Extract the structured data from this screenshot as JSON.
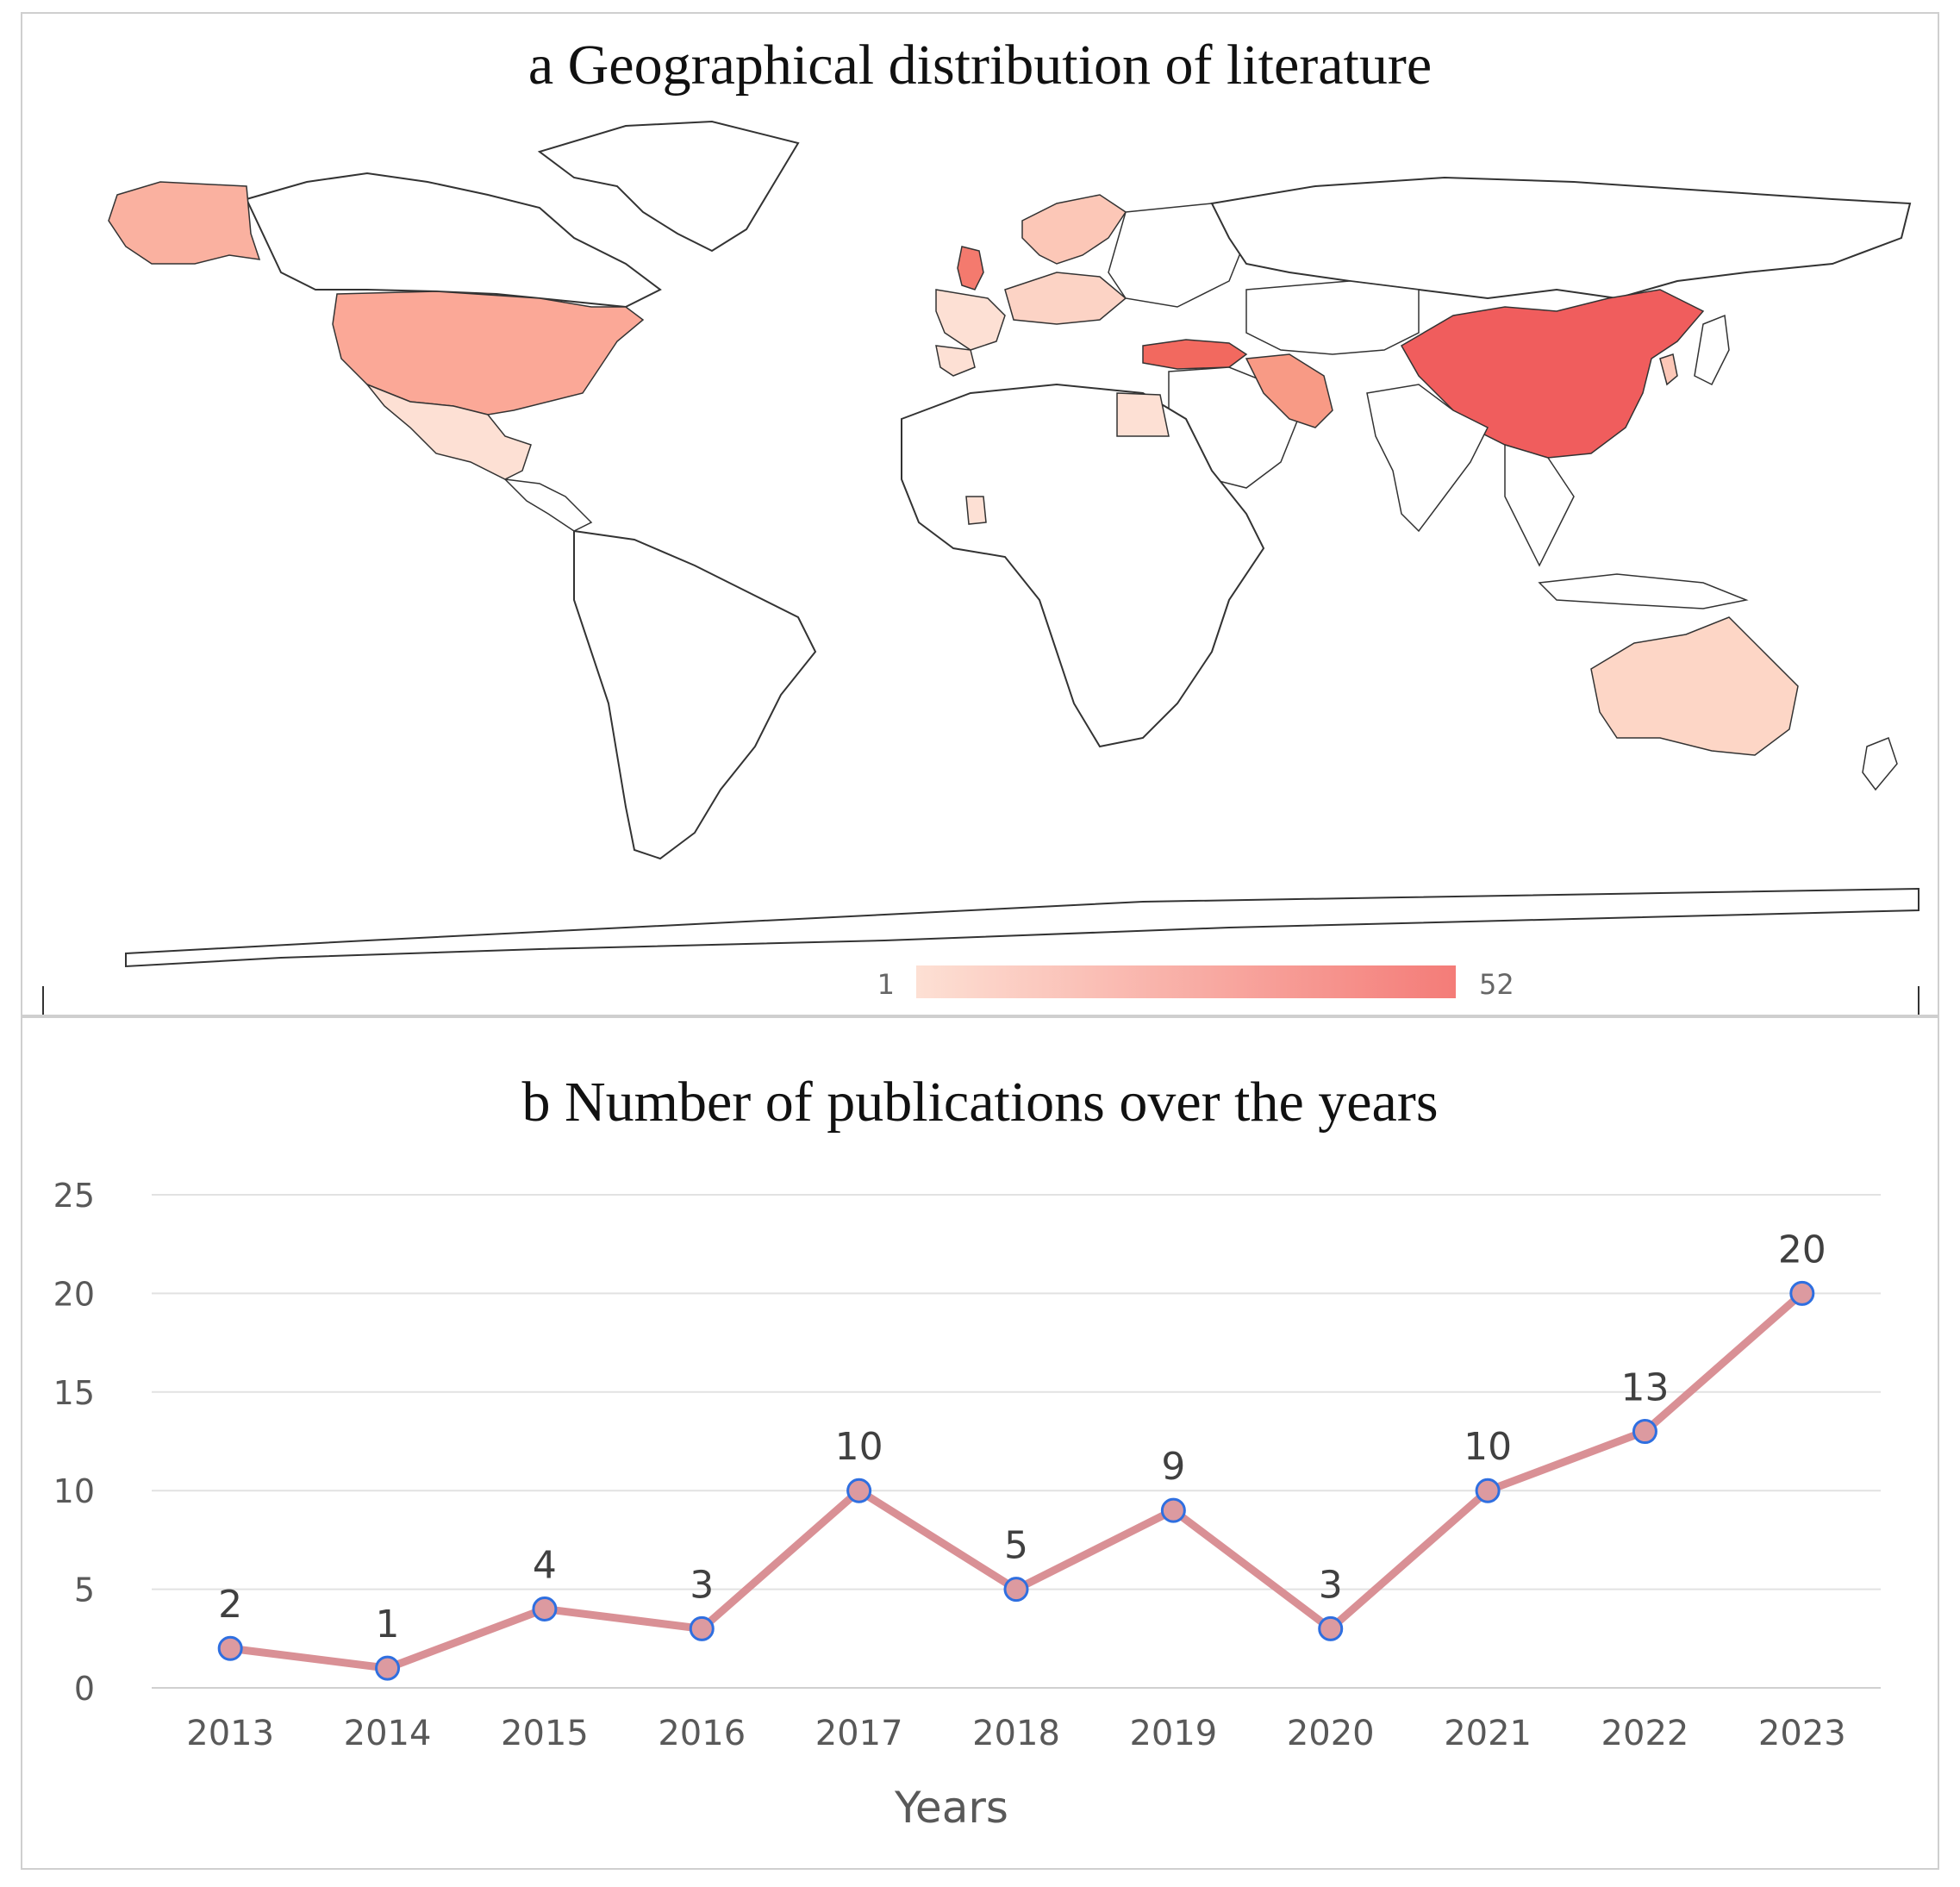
{
  "panel_a": {
    "title": "a Geographical distribution of literature",
    "legend": {
      "min_label": "1",
      "max_label": "52",
      "color_low": "#fde0d4",
      "color_high": "#f47c78"
    },
    "highlight_color": "#f05d5d"
  },
  "chart_data": {
    "type": "line",
    "title": "b Number of publications over the years",
    "xlabel": "Years",
    "ylabel": "",
    "categories": [
      "2013",
      "2014",
      "2015",
      "2016",
      "2017",
      "2018",
      "2019",
      "2020",
      "2021",
      "2022",
      "2023"
    ],
    "values": [
      2,
      1,
      4,
      3,
      10,
      5,
      9,
      3,
      10,
      13,
      20
    ],
    "ylim": [
      0,
      25
    ],
    "yticks": [
      0,
      5,
      10,
      15,
      20,
      25
    ],
    "grid": true,
    "data_labels": true,
    "line_color": "#d99095",
    "marker_fill": "#dc9aa0",
    "marker_edge": "#2f6fe0"
  }
}
